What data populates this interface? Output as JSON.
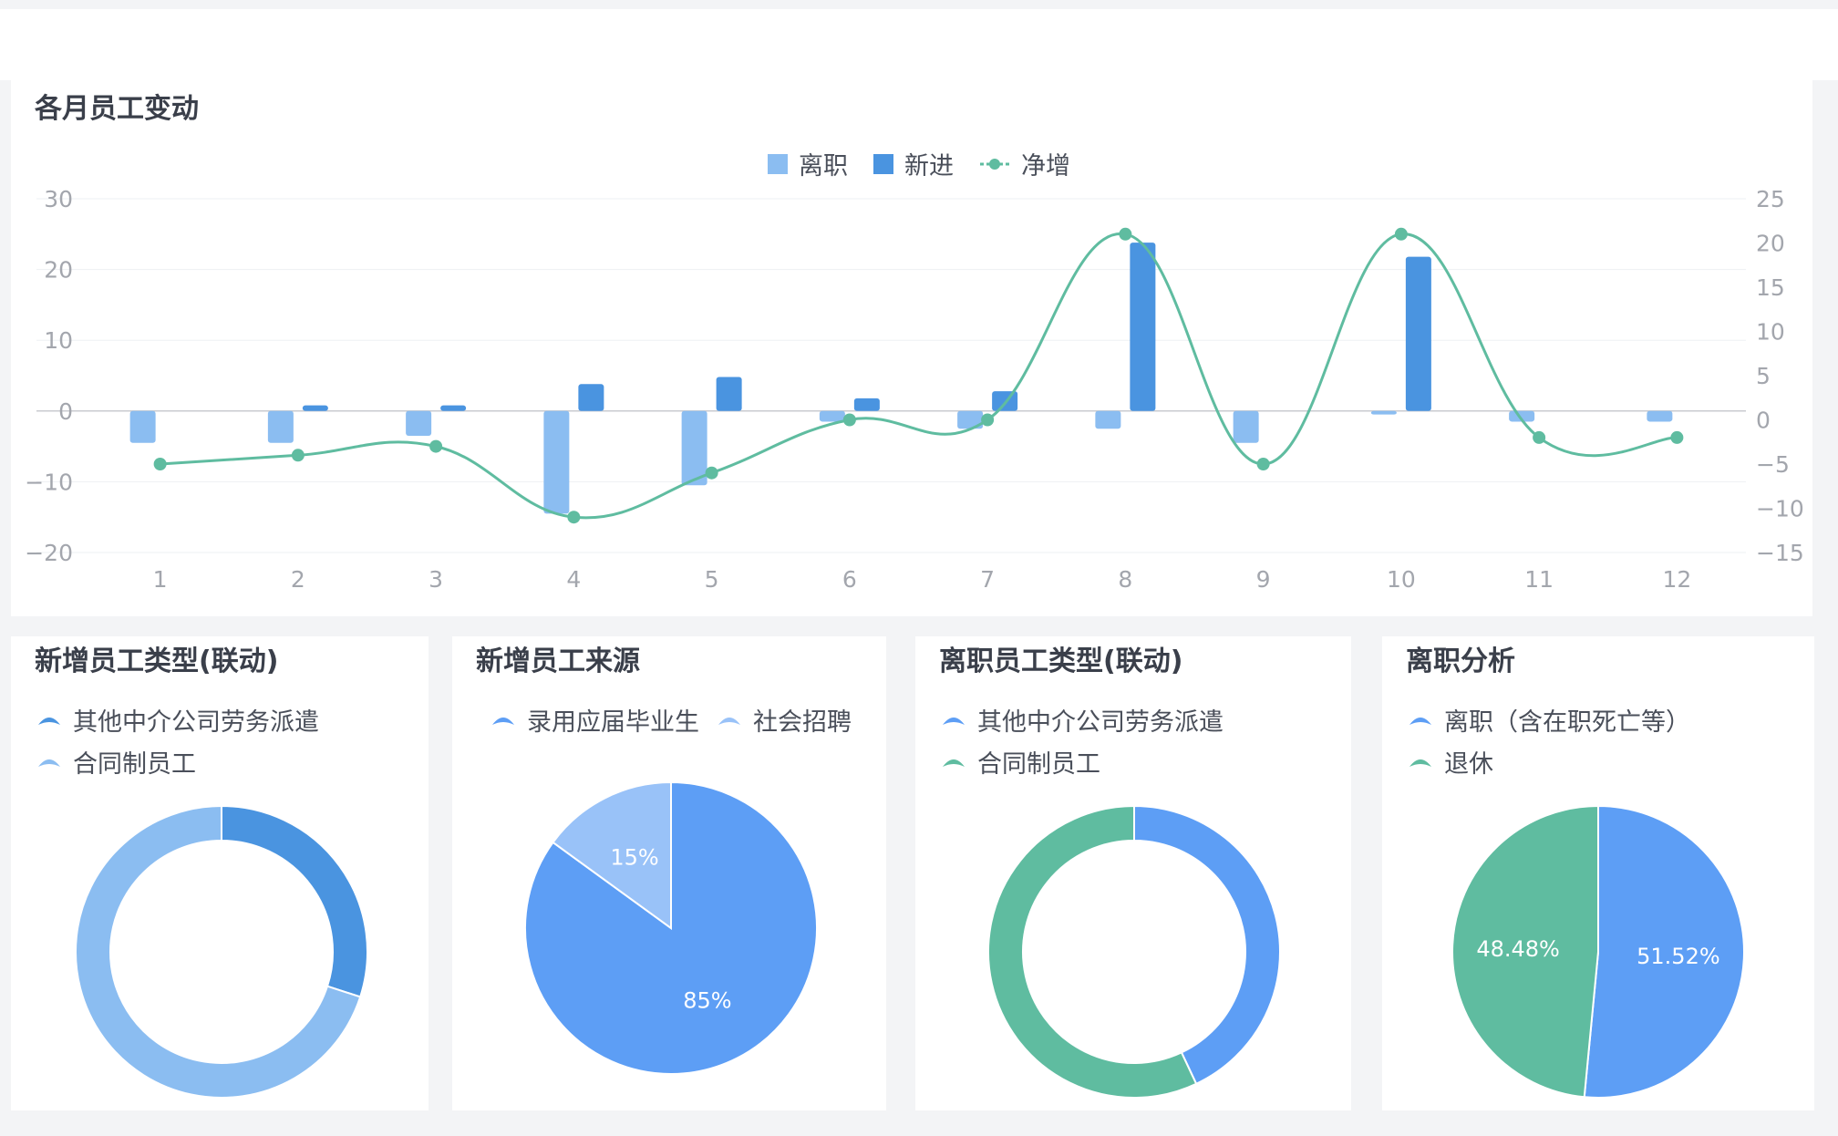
{
  "colors": {
    "light_blue": "#8bbdf1",
    "blue": "#4a94e0",
    "green": "#5fbca0",
    "pie_blue": "#5d9ef5",
    "pie_light": "#99c2f8",
    "axis_text": "#a3a6ad",
    "grid": "#eef0f3"
  },
  "top_chart": {
    "title": "各月员工变动",
    "legend": [
      {
        "label": "离职",
        "color": "#8bbdf1",
        "icon": "square-icon"
      },
      {
        "label": "新进",
        "color": "#4a94e0",
        "icon": "square-icon"
      },
      {
        "label": "净增",
        "color": "#5fbca0",
        "icon": "line-dot-icon"
      }
    ]
  },
  "pies": [
    {
      "title": "新增员工类型(联动)",
      "legend": [
        {
          "label": "其他中介公司劳务派遣",
          "color": "#4a94e0"
        },
        {
          "label": "合同制员工",
          "color": "#8bbdf1"
        }
      ]
    },
    {
      "title": "新增员工来源",
      "legend": [
        {
          "label": "录用应届毕业生",
          "color": "#5d9ef5"
        },
        {
          "label": "社会招聘",
          "color": "#99c2f8"
        }
      ]
    },
    {
      "title": "离职员工类型(联动)",
      "legend": [
        {
          "label": "其他中介公司劳务派遣",
          "color": "#5d9ef5"
        },
        {
          "label": "合同制员工",
          "color": "#5fbca0"
        }
      ]
    },
    {
      "title": "离职分析",
      "legend": [
        {
          "label": "离职（含在职死亡等）",
          "color": "#5d9ef5"
        },
        {
          "label": "退休",
          "color": "#5fbca0"
        }
      ]
    }
  ],
  "chart_data": [
    {
      "type": "bar",
      "title": "各月员工变动",
      "categories": [
        "1",
        "2",
        "3",
        "4",
        "5",
        "6",
        "7",
        "8",
        "9",
        "10",
        "11",
        "12"
      ],
      "series": [
        {
          "name": "离职",
          "axis": "left",
          "values": [
            -4.5,
            -4.5,
            -3.5,
            -14.5,
            -10.5,
            -1.5,
            -2.5,
            -2.5,
            -4.5,
            -0.5,
            -1.5,
            -1.5
          ]
        },
        {
          "name": "新进",
          "axis": "left",
          "values": [
            0,
            0.8,
            0.8,
            3.8,
            4.8,
            1.8,
            2.8,
            23.8,
            0,
            21.8,
            0,
            0
          ]
        },
        {
          "name": "净增",
          "axis": "right",
          "type": "line",
          "values": [
            -5,
            -4,
            -3,
            -11,
            -6,
            0,
            0,
            21,
            -5,
            21,
            -2,
            -2
          ]
        }
      ],
      "y_left": {
        "ylim": [
          -20,
          30
        ],
        "ticks": [
          30,
          20,
          10,
          0,
          -10,
          -20
        ]
      },
      "y_right": {
        "ylim": [
          -15,
          25
        ],
        "ticks": [
          25,
          20,
          15,
          10,
          5,
          0,
          -5,
          -10,
          -15
        ]
      },
      "grid": true,
      "legend_position": "top-center"
    },
    {
      "type": "pie",
      "title": "新增员工类型(联动)",
      "donut": true,
      "labels": [
        "其他中介公司劳务派遣",
        "合同制员工"
      ],
      "values": [
        30,
        70
      ],
      "show_labels": false
    },
    {
      "type": "pie",
      "title": "新增员工来源",
      "labels": [
        "录用应届毕业生",
        "社会招聘"
      ],
      "values": [
        85,
        15
      ],
      "display_labels": [
        "85%",
        "15%"
      ]
    },
    {
      "type": "pie",
      "title": "离职员工类型(联动)",
      "donut": true,
      "labels": [
        "其他中介公司劳务派遣",
        "合同制员工"
      ],
      "values": [
        43,
        57
      ],
      "show_labels": false
    },
    {
      "type": "pie",
      "title": "离职分析",
      "labels": [
        "离职（含在职死亡等）",
        "退休"
      ],
      "values": [
        51.52,
        48.48
      ],
      "display_labels": [
        "51.52%",
        "48.48%"
      ]
    }
  ]
}
